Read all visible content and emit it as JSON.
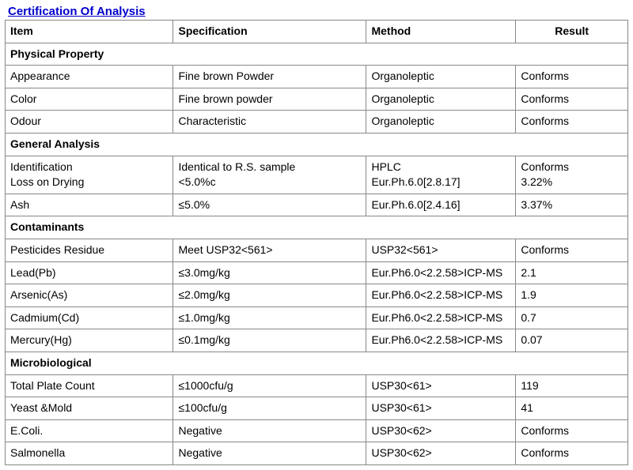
{
  "title": "Certification Of Analysis",
  "headers": {
    "item": "Item",
    "spec": "Specification",
    "method": "Method",
    "result": "Result"
  },
  "sections": {
    "physical": "Physical Property",
    "general": "General Analysis",
    "contaminants": "Contaminants",
    "micro": "Microbiological"
  },
  "rows": {
    "appearance": {
      "item": "Appearance",
      "spec": "Fine brown Powder",
      "method": "Organoleptic",
      "result": "Conforms"
    },
    "color": {
      "item": "Color",
      "spec": "Fine brown powder",
      "method": "Organoleptic",
      "result": "Conforms"
    },
    "odour": {
      "item": "Odour",
      "spec": "Characteristic",
      "method": "Organoleptic",
      "result": "Conforms"
    },
    "ident": {
      "item": "Identification",
      "spec": "Identical to R.S. sample",
      "method": "HPLC",
      "result": "Conforms"
    },
    "lod": {
      "item": "Loss on Drying",
      "spec": "<5.0%c",
      "method": "Eur.Ph.6.0[2.8.17]",
      "result": "3.22%"
    },
    "ash": {
      "item": "Ash",
      "spec": "≤5.0%",
      "method": "Eur.Ph.6.0[2.4.16]",
      "result": "3.37%"
    },
    "pest": {
      "item": "Pesticides Residue",
      "spec": "Meet USP32<561>",
      "method": "USP32<561>",
      "result": "Conforms"
    },
    "lead": {
      "item": "Lead(Pb)",
      "spec": "≤3.0mg/kg",
      "method": "Eur.Ph6.0<2.2.58>ICP-MS",
      "result": "2.1"
    },
    "arsenic": {
      "item": "Arsenic(As)",
      "spec": "≤2.0mg/kg",
      "method": "Eur.Ph6.0<2.2.58>ICP-MS",
      "result": "1.9"
    },
    "cadmium": {
      "item": "Cadmium(Cd)",
      "spec": "≤1.0mg/kg",
      "method": "Eur.Ph6.0<2.2.58>ICP-MS",
      "result": "0.7"
    },
    "mercury": {
      "item": "Mercury(Hg)",
      "spec": "≤0.1mg/kg",
      "method": "Eur.Ph6.0<2.2.58>ICP-MS",
      "result": "0.07"
    },
    "tpc": {
      "item": "Total Plate Count",
      "spec": "≤1000cfu/g",
      "method": "USP30<61>",
      "result": "119"
    },
    "yeast": {
      "item": "Yeast &Mold",
      "spec": "≤100cfu/g",
      "method": "USP30<61>",
      "result": "41"
    },
    "ecoli": {
      "item": "E.Coli.",
      "spec": "Negative",
      "method": "USP30<62>",
      "result": "Conforms"
    },
    "salmonella": {
      "item": "Salmonella",
      "spec": "Negative",
      "method": "USP30<62>",
      "result": "Conforms"
    }
  }
}
